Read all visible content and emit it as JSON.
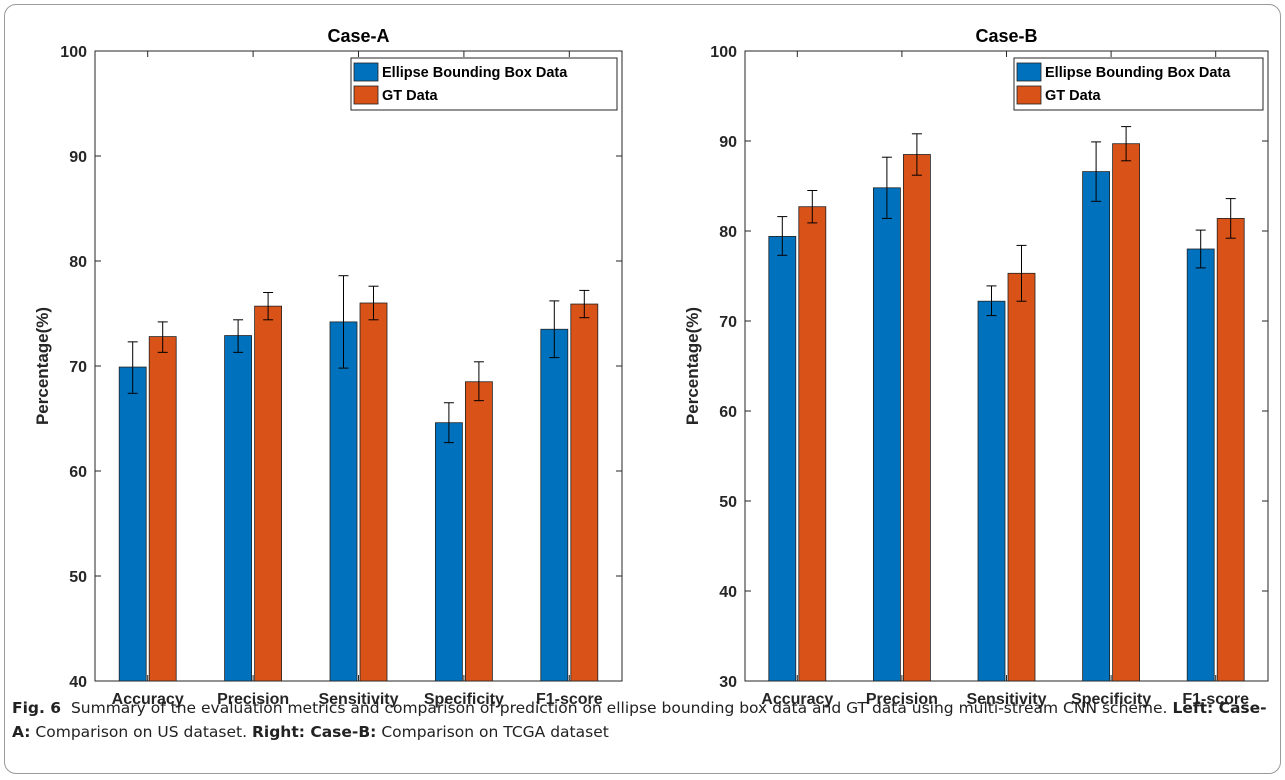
{
  "chart_data": [
    {
      "type": "bar",
      "title": "Case-A",
      "xlabel": "",
      "ylabel": "Percentage(%)",
      "ylim": [
        40,
        100
      ],
      "yticks": [
        40,
        50,
        60,
        70,
        80,
        90,
        100
      ],
      "categories": [
        "Accuracy",
        "Precision",
        "Sensitivity",
        "Specificity",
        "F1-score"
      ],
      "series": [
        {
          "name": "Ellipse Bounding Box Data",
          "color": "#0072BD",
          "values": [
            69.9,
            72.9,
            74.2,
            64.6,
            73.5
          ],
          "error": [
            [
              67.4,
              72.3
            ],
            [
              71.3,
              74.4
            ],
            [
              69.8,
              78.6
            ],
            [
              62.7,
              66.5
            ],
            [
              70.8,
              76.2
            ]
          ]
        },
        {
          "name": "GT Data",
          "color": "#D95319",
          "values": [
            72.8,
            75.7,
            76.0,
            68.5,
            75.9
          ],
          "error": [
            [
              71.3,
              74.2
            ],
            [
              74.4,
              77.0
            ],
            [
              74.4,
              77.6
            ],
            [
              66.7,
              70.4
            ],
            [
              74.6,
              77.2
            ]
          ]
        }
      ],
      "legend": "top-right",
      "grid": false
    },
    {
      "type": "bar",
      "title": "Case-B",
      "xlabel": "",
      "ylabel": "Percentage(%)",
      "ylim": [
        30,
        100
      ],
      "yticks": [
        30,
        40,
        50,
        60,
        70,
        80,
        90,
        100
      ],
      "categories": [
        "Accuracy",
        "Precision",
        "Sensitivity",
        "Specificity",
        "F1-score"
      ],
      "series": [
        {
          "name": "Ellipse Bounding Box Data",
          "color": "#0072BD",
          "values": [
            79.4,
            84.8,
            72.2,
            86.6,
            78.0
          ],
          "error": [
            [
              77.3,
              81.6
            ],
            [
              81.4,
              88.2
            ],
            [
              70.6,
              73.9
            ],
            [
              83.3,
              89.9
            ],
            [
              75.9,
              80.1
            ]
          ]
        },
        {
          "name": "GT Data",
          "color": "#D95319",
          "values": [
            82.7,
            88.5,
            75.3,
            89.7,
            81.4
          ],
          "error": [
            [
              80.9,
              84.5
            ],
            [
              86.2,
              90.8
            ],
            [
              72.2,
              78.4
            ],
            [
              87.8,
              91.6
            ],
            [
              79.2,
              83.6
            ]
          ]
        }
      ],
      "legend": "top-right",
      "grid": false
    }
  ],
  "caption": {
    "fig_label": "Fig. 6",
    "text1": "Summary of the evaluation metrics and comparison of prediction on ellipse bounding box data and GT data using multi-stream CNN scheme.",
    "left_label": "Left: Case-A:",
    "left_text": "Comparison on US dataset.",
    "right_label": "Right: Case-B:",
    "right_text": "Comparison on TCGA dataset"
  }
}
